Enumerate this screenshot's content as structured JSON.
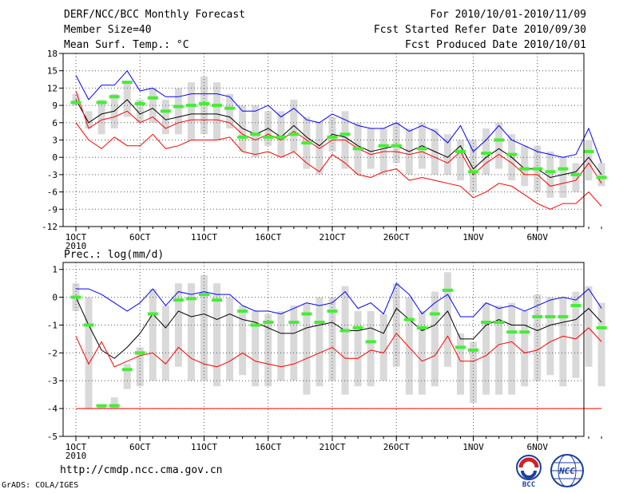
{
  "header": {
    "title": "DERF/NCC/BCC Monthly Forecast",
    "member_size": "Member Size=40",
    "variable": "Mean Surf. Temp.: °C",
    "for_range": "For 2010/10/01-2010/11/09",
    "fcst_started": "Fcst Started Refer Date 2010/09/30",
    "fcst_produced": "Fcst Produced Date 2010/10/01"
  },
  "footer": {
    "url": "http://cmdp.ncc.cma.gov.cn",
    "grads": "GrADS: COLA/IGES",
    "logo_bcc": "BCC",
    "logo_ncc": "NCC"
  },
  "colors": {
    "box": "#d9d9d9",
    "mean": "#000000",
    "upper": "#0000ff",
    "lower": "#ff0000",
    "analysis": "#44ee33",
    "grid": "#555555"
  },
  "chart_data": [
    {
      "type": "box-line",
      "title": "Mean Surf. Temp.: °C",
      "ylim": [
        -12,
        18
      ],
      "yticks": [
        -12,
        -9,
        -6,
        -3,
        0,
        3,
        6,
        9,
        12,
        15,
        18
      ],
      "x_tick_labels": [
        {
          "day": 1,
          "label": "1OCT"
        },
        {
          "day": 6,
          "label": "6OCT"
        },
        {
          "day": 11,
          "label": "11OCT"
        },
        {
          "day": 16,
          "label": "16OCT"
        },
        {
          "day": 21,
          "label": "21OCT"
        },
        {
          "day": 26,
          "label": "26OCT"
        },
        {
          "day": 32,
          "label": "1NOV"
        },
        {
          "day": 37,
          "label": "6NOV"
        }
      ],
      "year_label": "2010",
      "series": [
        {
          "name": "mean",
          "values": [
            10,
            6,
            7.5,
            8,
            10,
            7.5,
            8.5,
            6.5,
            7,
            7.5,
            7.5,
            7.5,
            7,
            5,
            4,
            5,
            3.5,
            5.5,
            3.5,
            2,
            4,
            3.5,
            2,
            1,
            1.5,
            2,
            1,
            2,
            1,
            0,
            2,
            -2,
            0,
            1.5,
            0,
            -2,
            -2,
            -3.5,
            -3,
            -2.5,
            0,
            -3
          ]
        },
        {
          "name": "upper",
          "values": [
            14.2,
            10,
            12.5,
            12.5,
            15,
            11.5,
            12,
            10.5,
            10.5,
            11,
            11,
            11,
            10.5,
            8,
            8,
            9,
            7,
            8.5,
            6.5,
            6,
            7.5,
            6.5,
            5.5,
            5,
            5,
            6,
            4.5,
            5.5,
            4.5,
            2.5,
            5.5,
            1,
            3,
            5.5,
            3,
            2,
            1,
            0.5,
            0,
            0.5,
            5,
            -1
          ]
        },
        {
          "name": "lower",
          "values": [
            6,
            3,
            1.5,
            3.5,
            2,
            2,
            4,
            1.5,
            2,
            3,
            3,
            3,
            3.5,
            1,
            0.5,
            1,
            0,
            1,
            -1,
            -2.5,
            0.5,
            -1,
            -3,
            -3.5,
            -2.5,
            -2,
            -4,
            -3.5,
            -4,
            -4.5,
            -5,
            -7,
            -6,
            -4.5,
            -5,
            -6.5,
            -8,
            -9,
            -8,
            -8,
            -6,
            -8.5
          ]
        },
        {
          "name": "red",
          "values": [
            11.5,
            5,
            6.5,
            7,
            8,
            6,
            7,
            5,
            6,
            6.5,
            6.5,
            6.5,
            6,
            4,
            3,
            4,
            3,
            4.5,
            3,
            1.5,
            3,
            3,
            1.5,
            0.5,
            1,
            1,
            0.5,
            1,
            0,
            -1,
            1,
            -3,
            -1,
            0.5,
            -1,
            -3,
            -3,
            -5,
            -4.5,
            -4,
            -1,
            -4.5
          ]
        },
        {
          "name": "analysis",
          "values": [
            9.5,
            null,
            9.5,
            10.5,
            13,
            9.3,
            10.3,
            8,
            8.8,
            9,
            9.3,
            9,
            8.5,
            3.5,
            4,
            3.5,
            3.5,
            4,
            2.5,
            null,
            3.5,
            4,
            1.5,
            null,
            2,
            2,
            null,
            1.5,
            null,
            null,
            1,
            -2.5,
            0.7,
            3,
            0.5,
            -2,
            -2,
            -2.5,
            -2,
            -3,
            1,
            -3.5
          ]
        }
      ],
      "boxes": [
        [
          9,
          11
        ],
        [
          5,
          8
        ],
        [
          4,
          10
        ],
        [
          5,
          11
        ],
        [
          7,
          13
        ],
        [
          6,
          10
        ],
        [
          6,
          12
        ],
        [
          4,
          10
        ],
        [
          4,
          12
        ],
        [
          3,
          13
        ],
        [
          4,
          14
        ],
        [
          3,
          13
        ],
        [
          5,
          11
        ],
        [
          1,
          9
        ],
        [
          0,
          9
        ],
        [
          2,
          8
        ],
        [
          0,
          8
        ],
        [
          1,
          10
        ],
        [
          -2,
          7
        ],
        [
          -3,
          6
        ],
        [
          1,
          7
        ],
        [
          -2,
          8
        ],
        [
          -3,
          6
        ],
        [
          -2,
          5
        ],
        [
          -3,
          5
        ],
        [
          -1,
          6
        ],
        [
          -3,
          5
        ],
        [
          -2,
          6
        ],
        [
          -3,
          5
        ],
        [
          -3,
          4
        ],
        [
          -4,
          3
        ],
        [
          -6,
          3
        ],
        [
          -3,
          5
        ],
        [
          -2,
          6
        ],
        [
          -4,
          4
        ],
        [
          -5,
          2
        ],
        [
          -6,
          2
        ],
        [
          -7,
          1
        ],
        [
          -7,
          0
        ],
        [
          -6,
          -1
        ],
        [
          -4,
          3
        ],
        [
          -5,
          -1
        ]
      ]
    },
    {
      "type": "box-line",
      "title": "Prec.: log(mm/d)",
      "ylim": [
        -5,
        1.25
      ],
      "yticks": [
        -5,
        -4,
        -3,
        -2,
        -1,
        0,
        1
      ],
      "x_tick_labels": [
        {
          "day": 1,
          "label": "1OCT"
        },
        {
          "day": 6,
          "label": "6OCT"
        },
        {
          "day": 11,
          "label": "11OCT"
        },
        {
          "day": 16,
          "label": "16OCT"
        },
        {
          "day": 21,
          "label": "21OCT"
        },
        {
          "day": 26,
          "label": "26OCT"
        },
        {
          "day": 32,
          "label": "1NOV"
        },
        {
          "day": 37,
          "label": "6NOV"
        }
      ],
      "year_label": "2010",
      "series": [
        {
          "name": "mean",
          "values": [
            0,
            -1,
            -1.9,
            -2.2,
            -1.8,
            -1.3,
            -0.6,
            -1.1,
            -0.5,
            -0.7,
            -0.6,
            -0.8,
            -0.6,
            -0.8,
            -0.9,
            -1.1,
            -1.3,
            -1.3,
            -1.1,
            -1,
            -0.9,
            -1.2,
            -1.2,
            -1.1,
            -1.3,
            -0.4,
            -0.8,
            -1.2,
            -1,
            -0.5,
            -1.5,
            -1.5,
            -1,
            -0.8,
            -1,
            -1,
            -1.2,
            -1,
            -0.9,
            -0.8,
            -0.4,
            -0.9
          ]
        },
        {
          "name": "upper",
          "values": [
            0.3,
            0.3,
            0.1,
            -0.2,
            -0.5,
            -0.2,
            0.3,
            -0.3,
            0.2,
            0.1,
            0.2,
            0.1,
            0.1,
            -0.3,
            -0.5,
            -0.5,
            -0.6,
            -0.4,
            -0.2,
            -0.3,
            -0.2,
            0.2,
            -0.4,
            -0.2,
            -0.6,
            0.5,
            0.1,
            -0.6,
            -0.2,
            0.1,
            -0.7,
            -0.7,
            -0.2,
            -0.4,
            -0.3,
            -0.5,
            -0.3,
            -0.1,
            0,
            -0.1,
            0.3,
            -0.4
          ]
        },
        {
          "name": "lower",
          "values": [
            -1.4,
            -2.4,
            -1.6,
            -2.5,
            -2.3,
            -2.1,
            -2,
            -2.4,
            -1.8,
            -2.2,
            -2.4,
            -2.5,
            -2.3,
            -2,
            -2.3,
            -2.4,
            -2.5,
            -2.4,
            -2.2,
            -2,
            -1.8,
            -2.2,
            -2.2,
            -1.9,
            -2,
            -1.3,
            -1.8,
            -2.3,
            -2.1,
            -1.4,
            -2.3,
            -2.3,
            -2.1,
            -1.7,
            -1.6,
            -2,
            -1.9,
            -1.6,
            -1.4,
            -1.5,
            -1.1,
            -1.6
          ]
        },
        {
          "name": "floor",
          "values": [
            -4,
            -4,
            -4,
            -4,
            -4,
            -4,
            -4,
            -4,
            -4,
            -4,
            -4,
            -4,
            -4,
            -4,
            -4,
            -4,
            -4,
            -4,
            -4,
            -4,
            -4,
            -4,
            -4,
            -4,
            -4,
            -4,
            -4,
            -4,
            -4,
            -4,
            -4,
            -4,
            -4,
            -4,
            -4,
            -4,
            -4,
            -4,
            -4,
            -4,
            -4,
            -4
          ]
        },
        {
          "name": "analysis",
          "values": [
            0,
            -1,
            -3.9,
            -3.9,
            -2.6,
            -2,
            -0.6,
            null,
            -0.1,
            -0.05,
            0.1,
            -0.1,
            null,
            -0.5,
            -1,
            -0.9,
            null,
            -0.9,
            -0.6,
            -0.9,
            -0.5,
            -1.2,
            -1.1,
            -1.6,
            null,
            null,
            -0.8,
            -1.1,
            -0.6,
            0.25,
            -1.8,
            -1.9,
            -0.9,
            -0.9,
            -1.25,
            -1.25,
            -0.7,
            -0.7,
            -0.7,
            -0.3,
            null,
            -1.1
          ]
        }
      ],
      "boxes": [
        [
          -0.5,
          0.5
        ],
        [
          -4,
          0
        ],
        [
          -4,
          -3.9
        ],
        [
          -4,
          -3.6
        ],
        [
          -3.3,
          -2.4
        ],
        [
          -3.2,
          -1.8
        ],
        [
          -3,
          0.3
        ],
        [
          -3,
          -0.3
        ],
        [
          -2.5,
          0.5
        ],
        [
          -3,
          0.5
        ],
        [
          -3,
          0.8
        ],
        [
          -3.2,
          0.5
        ],
        [
          -3,
          0
        ],
        [
          -2.8,
          -0.3
        ],
        [
          -3.2,
          -0.5
        ],
        [
          -3.2,
          -0.6
        ],
        [
          -3,
          -0.5
        ],
        [
          -3,
          -0.3
        ],
        [
          -3.5,
          -0.2
        ],
        [
          -3.2,
          0
        ],
        [
          -3,
          0
        ],
        [
          -3.5,
          0.4
        ],
        [
          -3.2,
          -0.5
        ],
        [
          -3.2,
          -0.5
        ],
        [
          -3,
          -0.6
        ],
        [
          -2.5,
          0.5
        ],
        [
          -3.5,
          0
        ],
        [
          -3.5,
          -0.5
        ],
        [
          -3.2,
          0.2
        ],
        [
          -2.5,
          0.9
        ],
        [
          -3.5,
          -1.3
        ],
        [
          -3.8,
          -1.6
        ],
        [
          -3.5,
          -0.2
        ],
        [
          -3.5,
          -0.3
        ],
        [
          -3.5,
          -0.2
        ],
        [
          -3.2,
          -0.5
        ],
        [
          -3,
          0.1
        ],
        [
          -2.8,
          0
        ],
        [
          -3.2,
          0
        ],
        [
          -2.9,
          0.2
        ],
        [
          -2.5,
          0.4
        ],
        [
          -3.2,
          -0.2
        ]
      ]
    }
  ]
}
